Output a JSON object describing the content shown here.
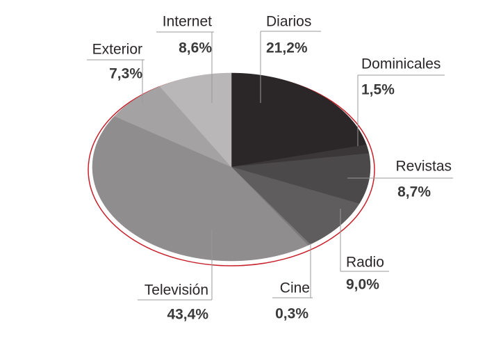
{
  "chart_data": {
    "type": "pie",
    "categories": [
      "Diarios",
      "Dominicales",
      "Revistas",
      "Radio",
      "Cine",
      "Televisión",
      "Exterior",
      "Internet"
    ],
    "values": [
      21.2,
      1.5,
      8.7,
      9.0,
      0.3,
      43.4,
      7.3,
      8.6
    ],
    "value_labels": [
      "21,2%",
      "1,5%",
      "8,7%",
      "9,0%",
      "0,3%",
      "43,4%",
      "7,3%",
      "8,6%"
    ],
    "colors": [
      "#2b2728",
      "#3b3738",
      "#4b4949",
      "#5f5d5d",
      "#7b7979",
      "#8f8d8d",
      "#a4a2a2",
      "#b9b7b7"
    ]
  }
}
